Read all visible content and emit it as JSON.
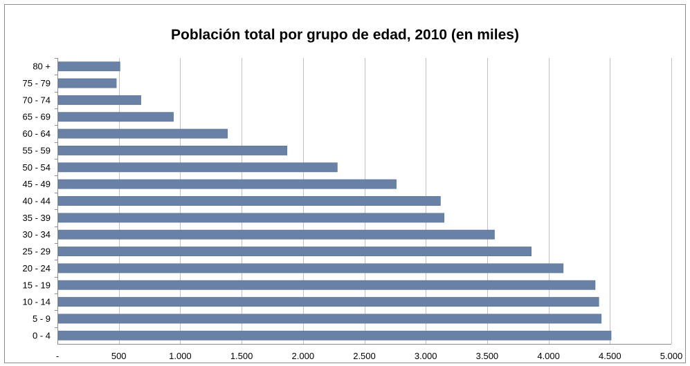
{
  "chart_data": {
    "type": "bar",
    "orientation": "horizontal",
    "title": "Población total por grupo de edad, 2010 (en miles)",
    "xlabel": "",
    "ylabel": "",
    "categories": [
      "80 +",
      "75 - 79",
      "70 - 74",
      "65 - 69",
      "60 - 64",
      "55 - 59",
      "50 - 54",
      "45 - 49",
      "40 - 44",
      "35 - 39",
      "30 - 34",
      "25 - 29",
      "20 - 24",
      "15 - 19",
      "10 - 14",
      "5 - 9",
      "0 - 4"
    ],
    "values": [
      510,
      480,
      680,
      945,
      1385,
      1870,
      2280,
      2760,
      3120,
      3150,
      3560,
      3860,
      4120,
      4380,
      4410,
      4430,
      4510
    ],
    "xlim": [
      0,
      5000
    ],
    "xticks": [
      0,
      500,
      1000,
      1500,
      2000,
      2500,
      3000,
      3500,
      4000,
      4500,
      5000
    ],
    "xtick_labels": [
      "-",
      "500",
      "1.000",
      "1.500",
      "2.000",
      "2.500",
      "3.000",
      "3.500",
      "4.000",
      "4.500",
      "5.000"
    ],
    "grid": "vertical",
    "legend": "none",
    "colors": {
      "bar": "#6a81a6",
      "bar_edge": "#5a7196",
      "grid": "#c0c0c0",
      "axis": "#8c8c8c"
    }
  }
}
